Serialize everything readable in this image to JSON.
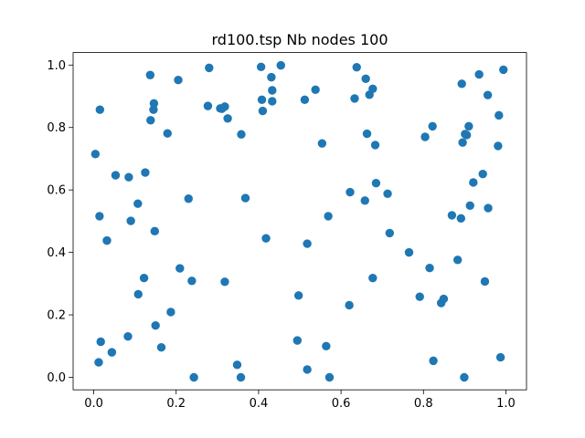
{
  "chart_data": {
    "type": "scatter",
    "title": "rd100.tsp Nb nodes 100",
    "xlabel": "",
    "ylabel": "",
    "xlim": [
      -0.05,
      1.05
    ],
    "ylim": [
      -0.04,
      1.04
    ],
    "xticks": [
      0.0,
      0.2,
      0.4,
      0.6,
      0.8,
      1.0
    ],
    "yticks": [
      0.0,
      0.2,
      0.4,
      0.6,
      0.8,
      1.0
    ],
    "xtick_labels": [
      "0.0",
      "0.2",
      "0.4",
      "0.6",
      "0.8",
      "1.0"
    ],
    "ytick_labels": [
      "0.0",
      "0.2",
      "0.4",
      "0.6",
      "0.8",
      "1.0"
    ],
    "grid": false,
    "marker_color": "#1f77b4",
    "points": [
      [
        0.004,
        0.715
      ],
      [
        0.015,
        0.857
      ],
      [
        0.014,
        0.516
      ],
      [
        0.012,
        0.048
      ],
      [
        0.017,
        0.114
      ],
      [
        0.032,
        0.438
      ],
      [
        0.044,
        0.08
      ],
      [
        0.053,
        0.647
      ],
      [
        0.085,
        0.641
      ],
      [
        0.083,
        0.131
      ],
      [
        0.09,
        0.501
      ],
      [
        0.107,
        0.556
      ],
      [
        0.108,
        0.266
      ],
      [
        0.122,
        0.318
      ],
      [
        0.125,
        0.656
      ],
      [
        0.137,
        0.968
      ],
      [
        0.138,
        0.823
      ],
      [
        0.145,
        0.857
      ],
      [
        0.146,
        0.877
      ],
      [
        0.148,
        0.468
      ],
      [
        0.15,
        0.166
      ],
      [
        0.164,
        0.096
      ],
      [
        0.179,
        0.781
      ],
      [
        0.187,
        0.209
      ],
      [
        0.205,
        0.952
      ],
      [
        0.209,
        0.349
      ],
      [
        0.23,
        0.572
      ],
      [
        0.238,
        0.309
      ],
      [
        0.243,
        0.0
      ],
      [
        0.277,
        0.869
      ],
      [
        0.28,
        0.991
      ],
      [
        0.307,
        0.861
      ],
      [
        0.311,
        0.86
      ],
      [
        0.318,
        0.867
      ],
      [
        0.325,
        0.829
      ],
      [
        0.318,
        0.306
      ],
      [
        0.348,
        0.04
      ],
      [
        0.358,
        0.778
      ],
      [
        0.368,
        0.574
      ],
      [
        0.357,
        0.0
      ],
      [
        0.406,
        0.994
      ],
      [
        0.408,
        0.889
      ],
      [
        0.41,
        0.853
      ],
      [
        0.418,
        0.445
      ],
      [
        0.431,
        0.961
      ],
      [
        0.433,
        0.919
      ],
      [
        0.433,
        0.884
      ],
      [
        0.454,
        0.999
      ],
      [
        0.494,
        0.118
      ],
      [
        0.497,
        0.262
      ],
      [
        0.512,
        0.889
      ],
      [
        0.518,
        0.428
      ],
      [
        0.518,
        0.025
      ],
      [
        0.538,
        0.921
      ],
      [
        0.554,
        0.749
      ],
      [
        0.564,
        0.1
      ],
      [
        0.569,
        0.516
      ],
      [
        0.572,
        0.0
      ],
      [
        0.62,
        0.231
      ],
      [
        0.622,
        0.593
      ],
      [
        0.633,
        0.893
      ],
      [
        0.638,
        0.993
      ],
      [
        0.658,
        0.566
      ],
      [
        0.66,
        0.956
      ],
      [
        0.663,
        0.78
      ],
      [
        0.669,
        0.905
      ],
      [
        0.677,
        0.924
      ],
      [
        0.677,
        0.318
      ],
      [
        0.683,
        0.744
      ],
      [
        0.685,
        0.622
      ],
      [
        0.713,
        0.588
      ],
      [
        0.718,
        0.462
      ],
      [
        0.765,
        0.4
      ],
      [
        0.791,
        0.258
      ],
      [
        0.804,
        0.77
      ],
      [
        0.815,
        0.35
      ],
      [
        0.822,
        0.804
      ],
      [
        0.824,
        0.053
      ],
      [
        0.843,
        0.238
      ],
      [
        0.849,
        0.251
      ],
      [
        0.869,
        0.519
      ],
      [
        0.883,
        0.376
      ],
      [
        0.891,
        0.509
      ],
      [
        0.893,
        0.94
      ],
      [
        0.895,
        0.752
      ],
      [
        0.899,
        0.0
      ],
      [
        0.901,
        0.779
      ],
      [
        0.905,
        0.776
      ],
      [
        0.91,
        0.804
      ],
      [
        0.913,
        0.55
      ],
      [
        0.921,
        0.624
      ],
      [
        0.935,
        0.97
      ],
      [
        0.944,
        0.651
      ],
      [
        0.949,
        0.307
      ],
      [
        0.956,
        0.904
      ],
      [
        0.957,
        0.542
      ],
      [
        0.981,
        0.741
      ],
      [
        0.983,
        0.839
      ],
      [
        0.987,
        0.064
      ],
      [
        0.994,
        0.985
      ]
    ]
  }
}
